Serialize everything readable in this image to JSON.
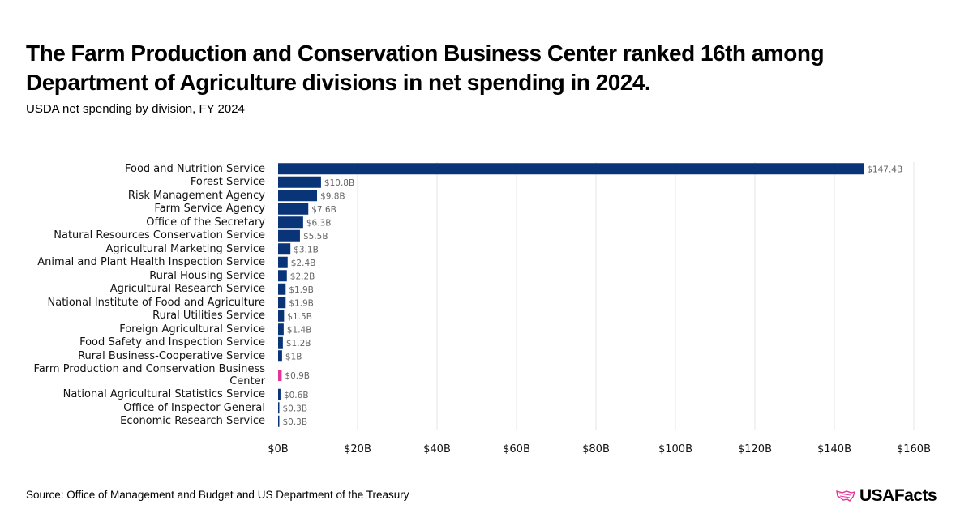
{
  "title": "The Farm Production and Conservation Business Center ranked 16th among Department of Agriculture divisions in net spending in 2024.",
  "subtitle": "USDA net spending by division, FY 2024",
  "source": "Source: Office of Management and Budget and US Department of the Treasury",
  "logo": "USAFacts",
  "colors": {
    "bar": "#0a3478",
    "highlight": "#e4349a",
    "grid": "#e6e6e6"
  },
  "chart_data": {
    "type": "bar",
    "orientation": "horizontal",
    "categories": [
      "Food and Nutrition Service",
      "Forest Service",
      "Risk Management Agency",
      "Farm Service Agency",
      "Office of the Secretary",
      "Natural Resources Conservation Service",
      "Agricultural Marketing Service",
      "Animal and Plant Health Inspection Service",
      "Rural Housing Service",
      "Agricultural Research Service",
      "National Institute of Food and Agriculture",
      "Rural Utilities Service",
      "Foreign Agricultural Service",
      "Food Safety and Inspection Service",
      "Rural Business-Cooperative Service",
      "Farm Production and Conservation Business Center",
      "National Agricultural Statistics Service",
      "Office of Inspector General",
      "Economic Research Service"
    ],
    "values": [
      147.4,
      10.8,
      9.8,
      7.6,
      6.3,
      5.5,
      3.1,
      2.4,
      2.2,
      1.9,
      1.9,
      1.5,
      1.4,
      1.2,
      1,
      0.9,
      0.6,
      0.3,
      0.3
    ],
    "data_labels": [
      "$147.4B",
      "$10.8B",
      "$9.8B",
      "$7.6B",
      "$6.3B",
      "$5.5B",
      "$3.1B",
      "$2.4B",
      "$2.2B",
      "$1.9B",
      "$1.9B",
      "$1.5B",
      "$1.4B",
      "$1.2B",
      "$1B",
      "$0.9B",
      "$0.6B",
      "$0.3B",
      "$0.3B"
    ],
    "highlighted": "Farm Production and Conservation Business Center",
    "xlim": [
      0,
      160
    ],
    "xticks": [
      0,
      20,
      40,
      60,
      80,
      100,
      120,
      140,
      160
    ],
    "xtick_labels": [
      "$0B",
      "$20B",
      "$40B",
      "$60B",
      "$80B",
      "$100B",
      "$120B",
      "$140B",
      "$160B"
    ],
    "grid": "vertical",
    "unit": "billions USD"
  }
}
